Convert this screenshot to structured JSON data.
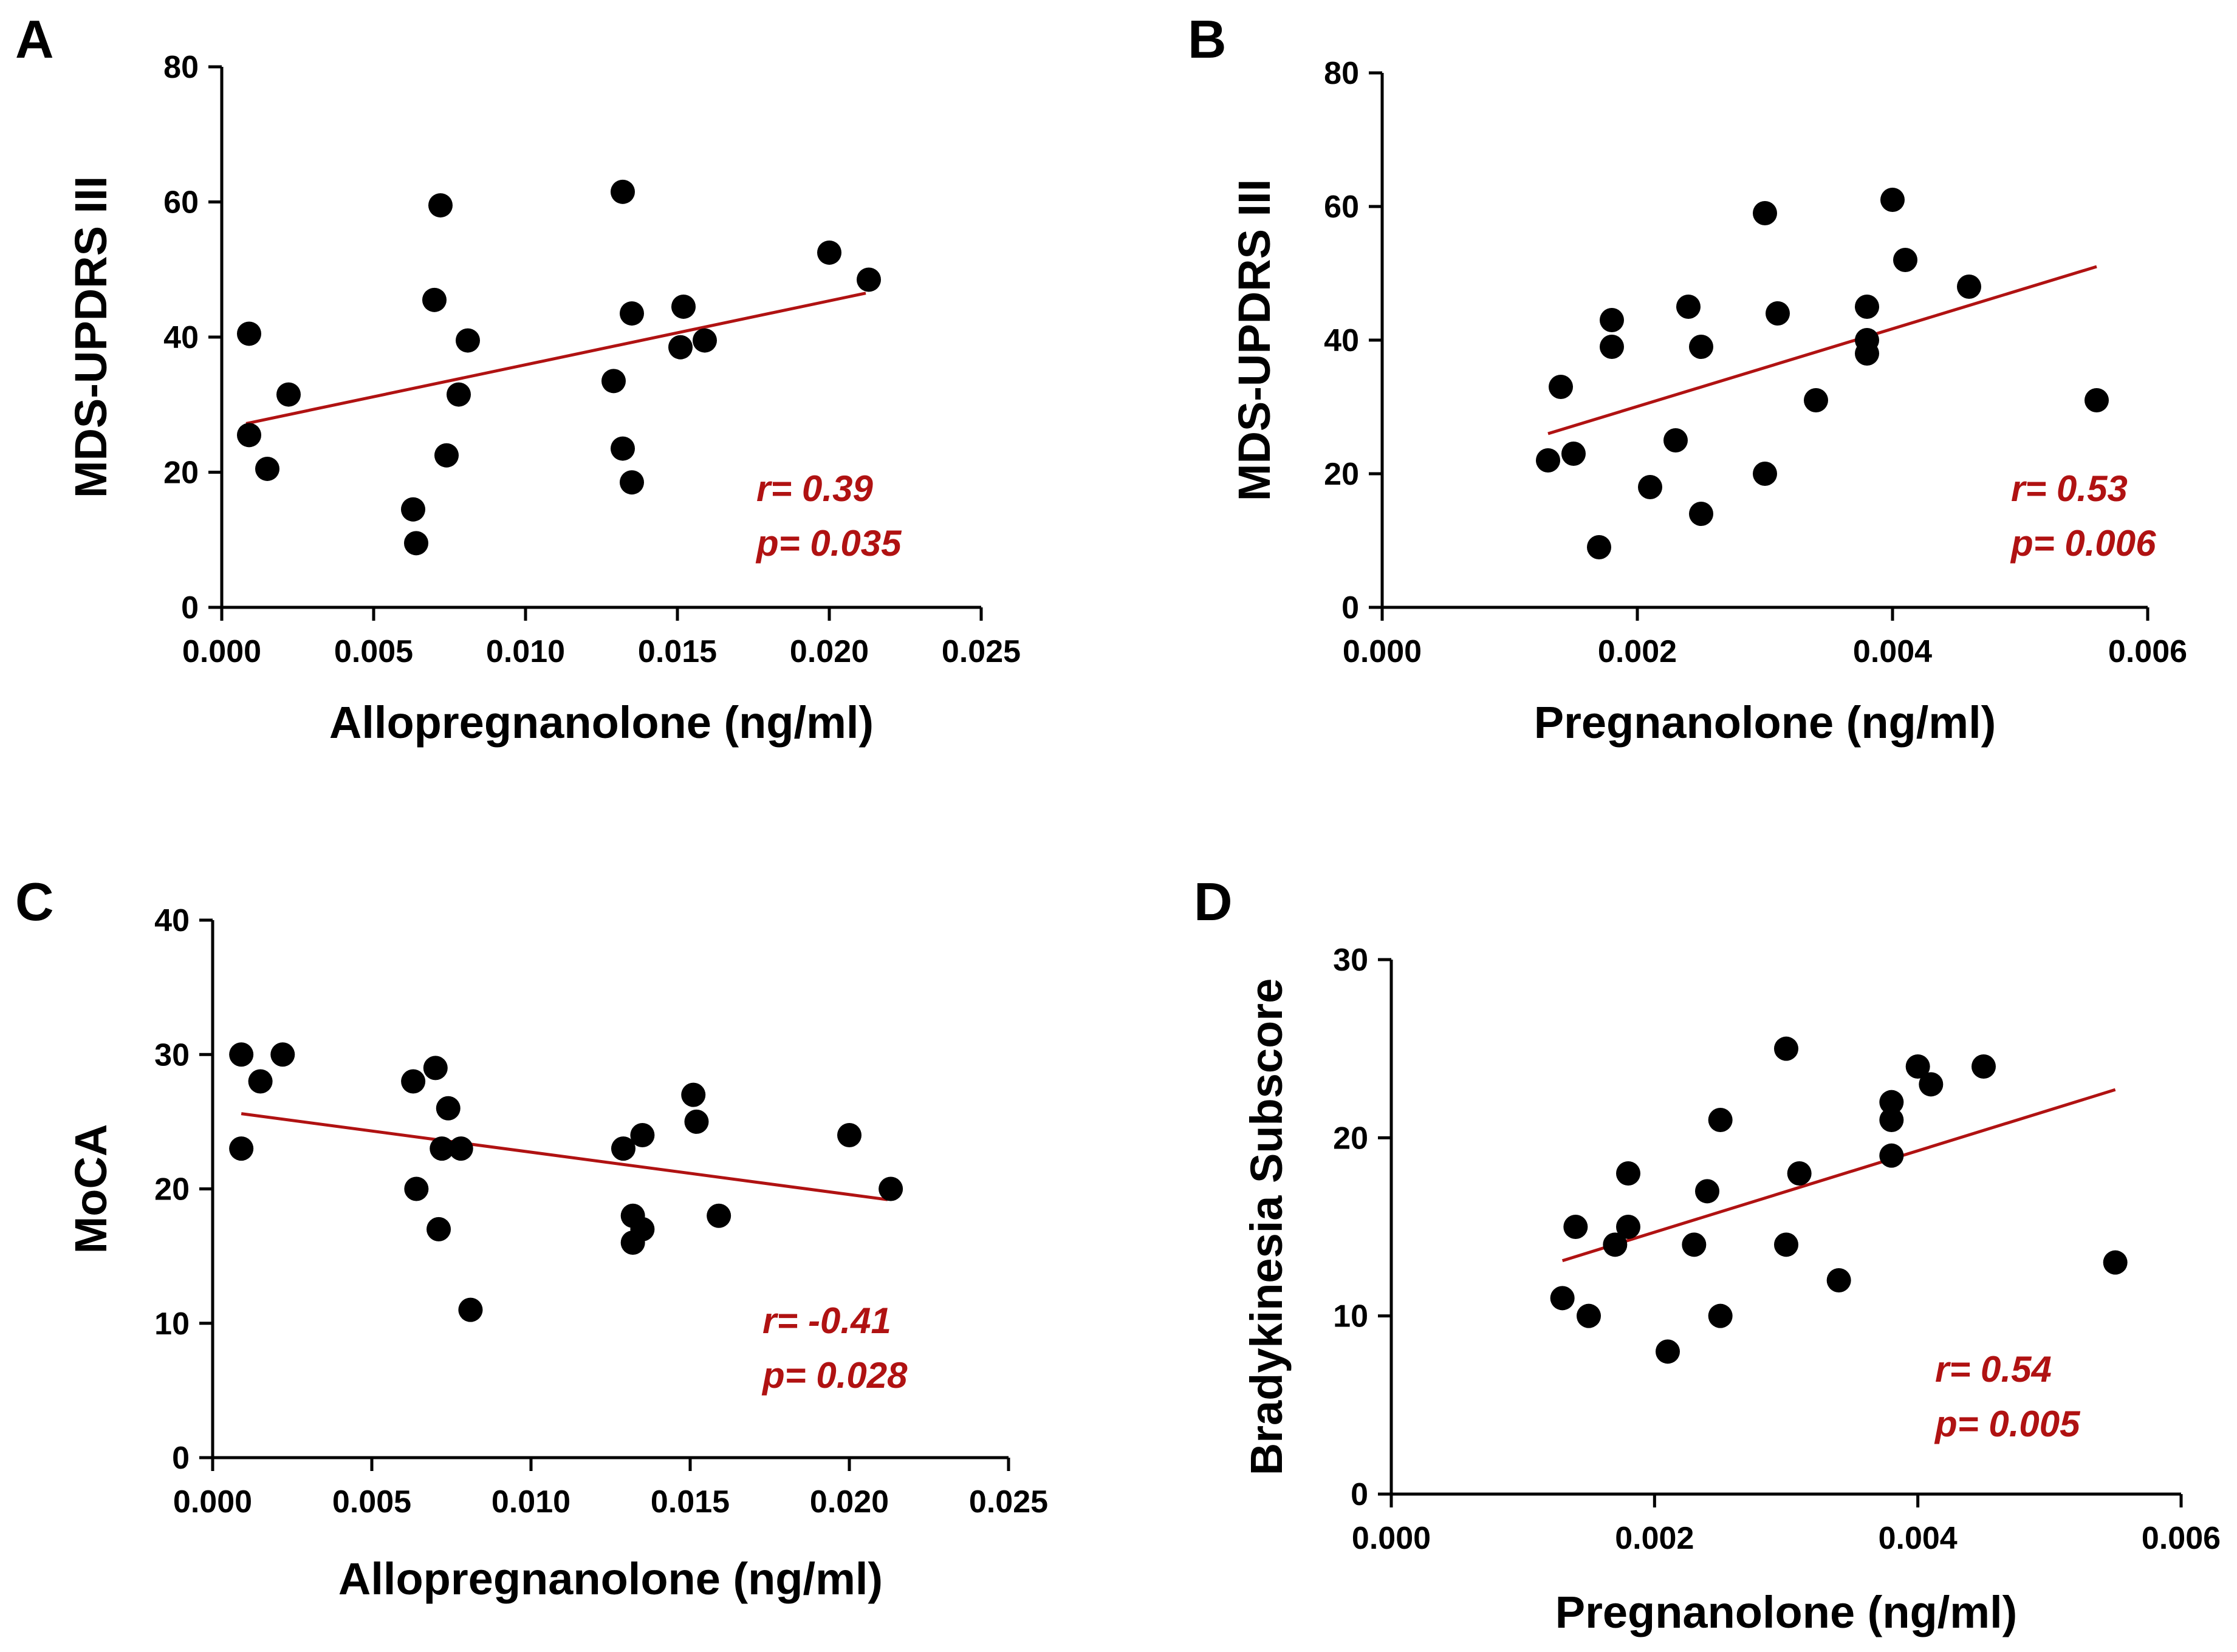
{
  "colors": {
    "points": "#000000",
    "fit_line": "#b01212",
    "stats": "#b01212"
  },
  "chart_data": [
    {
      "type": "scatter",
      "panel": "A",
      "xlabel": "Allopregnanolone (ng/ml)",
      "ylabel": "MDS-UPDRS III",
      "xlim": [
        0,
        0.025
      ],
      "ylim": [
        0,
        80
      ],
      "x_ticks": [
        0,
        0.005,
        0.01,
        0.015,
        0.02,
        0.025
      ],
      "x_tick_labels": [
        "0.000",
        "0.005",
        "0.010",
        "0.015",
        "0.020",
        "0.025"
      ],
      "y_ticks": [
        0,
        20,
        40,
        60,
        80
      ],
      "y_tick_labels": [
        "0",
        "20",
        "40",
        "60",
        "80"
      ],
      "points": [
        [
          0.0009,
          40.5
        ],
        [
          0.0009,
          25.5
        ],
        [
          0.0015,
          20.5
        ],
        [
          0.0022,
          31.5
        ],
        [
          0.0063,
          14.5
        ],
        [
          0.0064,
          9.5
        ],
        [
          0.007,
          45.5
        ],
        [
          0.0072,
          59.5
        ],
        [
          0.0074,
          22.5
        ],
        [
          0.0078,
          31.5
        ],
        [
          0.0081,
          39.5
        ],
        [
          0.0129,
          33.5
        ],
        [
          0.0132,
          61.5
        ],
        [
          0.0132,
          23.5
        ],
        [
          0.0135,
          43.5
        ],
        [
          0.0135,
          18.5
        ],
        [
          0.0151,
          38.5
        ],
        [
          0.0152,
          44.5
        ],
        [
          0.0159,
          39.5
        ],
        [
          0.02,
          52.5
        ],
        [
          0.0213,
          48.5
        ]
      ],
      "fit": [
        [
          0.0008,
          27.2
        ],
        [
          0.0212,
          46.5
        ]
      ],
      "stats": [
        "r= 0.39",
        "p= 0.035"
      ]
    },
    {
      "type": "scatter",
      "panel": "B",
      "xlabel": "Pregnanolone (ng/ml)",
      "ylabel": "MDS-UPDRS III",
      "xlim": [
        0,
        0.006
      ],
      "ylim": [
        0,
        80
      ],
      "x_ticks": [
        0,
        0.002,
        0.004,
        0.006
      ],
      "x_tick_labels": [
        "0.000",
        "0.002",
        "0.004",
        "0.006"
      ],
      "y_ticks": [
        0,
        20,
        40,
        60,
        80
      ],
      "y_tick_labels": [
        "0",
        "20",
        "40",
        "60",
        "80"
      ],
      "points": [
        [
          0.0013,
          22
        ],
        [
          0.0014,
          33
        ],
        [
          0.0015,
          23
        ],
        [
          0.0017,
          9
        ],
        [
          0.0018,
          43
        ],
        [
          0.0018,
          39
        ],
        [
          0.0021,
          18
        ],
        [
          0.0023,
          25
        ],
        [
          0.0024,
          45
        ],
        [
          0.0025,
          39
        ],
        [
          0.0025,
          14
        ],
        [
          0.003,
          59
        ],
        [
          0.003,
          20
        ],
        [
          0.0031,
          44
        ],
        [
          0.0034,
          31
        ],
        [
          0.0038,
          45
        ],
        [
          0.0038,
          40
        ],
        [
          0.0038,
          38
        ],
        [
          0.004,
          61
        ],
        [
          0.0041,
          52
        ],
        [
          0.0046,
          48
        ],
        [
          0.0056,
          31
        ]
      ],
      "fit": [
        [
          0.0013,
          26
        ],
        [
          0.0056,
          51
        ]
      ],
      "stats": [
        "r= 0.53",
        "p= 0.006"
      ]
    },
    {
      "type": "scatter",
      "panel": "C",
      "xlabel": "Allopregnanolone (ng/ml)",
      "ylabel": "MoCA",
      "xlim": [
        0,
        0.025
      ],
      "ylim": [
        0,
        40
      ],
      "x_ticks": [
        0,
        0.005,
        0.01,
        0.015,
        0.02,
        0.025
      ],
      "x_tick_labels": [
        "0.000",
        "0.005",
        "0.010",
        "0.015",
        "0.020",
        "0.025"
      ],
      "y_ticks": [
        0,
        10,
        20,
        30,
        40
      ],
      "y_tick_labels": [
        "0",
        "10",
        "20",
        "30",
        "40"
      ],
      "points": [
        [
          0.0009,
          30
        ],
        [
          0.0009,
          23
        ],
        [
          0.0015,
          28
        ],
        [
          0.0022,
          30
        ],
        [
          0.0063,
          28
        ],
        [
          0.0064,
          20
        ],
        [
          0.007,
          29
        ],
        [
          0.0071,
          17
        ],
        [
          0.0072,
          23
        ],
        [
          0.0074,
          26
        ],
        [
          0.0078,
          23
        ],
        [
          0.0081,
          11
        ],
        [
          0.0129,
          23
        ],
        [
          0.0132,
          18
        ],
        [
          0.0132,
          16
        ],
        [
          0.0135,
          24
        ],
        [
          0.0135,
          17
        ],
        [
          0.0151,
          27
        ],
        [
          0.0152,
          25
        ],
        [
          0.0159,
          18
        ],
        [
          0.02,
          24
        ],
        [
          0.0213,
          20
        ]
      ],
      "fit": [
        [
          0.0009,
          25.6
        ],
        [
          0.0212,
          19.2
        ]
      ],
      "stats": [
        "r= -0.41",
        "p= 0.028"
      ]
    },
    {
      "type": "scatter",
      "panel": "D",
      "xlabel": "Pregnanolone (ng/ml)",
      "ylabel": "Bradykinesia Subscore",
      "xlim": [
        0,
        0.006
      ],
      "ylim": [
        0,
        30
      ],
      "x_ticks": [
        0,
        0.002,
        0.004,
        0.006
      ],
      "x_tick_labels": [
        "0.000",
        "0.002",
        "0.004",
        "0.006"
      ],
      "y_ticks": [
        0,
        10,
        20,
        30
      ],
      "y_tick_labels": [
        "0",
        "10",
        "20",
        "30"
      ],
      "points": [
        [
          0.0013,
          11
        ],
        [
          0.0014,
          15
        ],
        [
          0.0015,
          10
        ],
        [
          0.0017,
          14
        ],
        [
          0.0018,
          18
        ],
        [
          0.0018,
          15
        ],
        [
          0.0021,
          8
        ],
        [
          0.0023,
          14
        ],
        [
          0.0024,
          17
        ],
        [
          0.0025,
          21
        ],
        [
          0.0025,
          10
        ],
        [
          0.003,
          25
        ],
        [
          0.003,
          14
        ],
        [
          0.0031,
          18
        ],
        [
          0.0034,
          12
        ],
        [
          0.0038,
          22
        ],
        [
          0.0038,
          21
        ],
        [
          0.0038,
          19
        ],
        [
          0.004,
          24
        ],
        [
          0.0041,
          23
        ],
        [
          0.0045,
          24
        ],
        [
          0.0055,
          13
        ]
      ],
      "fit": [
        [
          0.0013,
          13.1
        ],
        [
          0.0055,
          22.7
        ]
      ],
      "stats": [
        "r= 0.54",
        "p= 0.005"
      ]
    }
  ]
}
